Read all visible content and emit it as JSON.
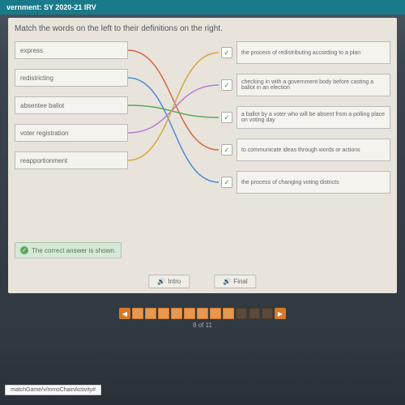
{
  "header": {
    "title": "vernment: SY 2020-21 IRV"
  },
  "instruction": "Match the words on the left to their definitions on the right.",
  "terms": [
    {
      "label": "express"
    },
    {
      "label": "redistricting"
    },
    {
      "label": "absentee ballot"
    },
    {
      "label": "voter registration"
    },
    {
      "label": "reapportionment"
    }
  ],
  "defs": [
    {
      "text": "the process of redistributing according to a plan"
    },
    {
      "text": "checking in with a government body before casting a ballot in an election"
    },
    {
      "text": "a ballot by a voter who will be absent from a polling place on voting day"
    },
    {
      "text": "to communicate ideas through words or actions"
    },
    {
      "text": "the process of changing voting districts"
    }
  ],
  "lines": [
    {
      "from": 0,
      "to": 3,
      "color": "#d9643f"
    },
    {
      "from": 1,
      "to": 4,
      "color": "#4a8ad4"
    },
    {
      "from": 2,
      "to": 2,
      "color": "#5aaa5a"
    },
    {
      "from": 3,
      "to": 1,
      "color": "#b77ad4"
    },
    {
      "from": 4,
      "to": 0,
      "color": "#d9a43f"
    }
  ],
  "correct_msg": "The correct answer is shown.",
  "buttons": {
    "intro": "Intro",
    "final": "Final"
  },
  "progress": {
    "count": 11,
    "current": 8,
    "label": "8 of 11"
  },
  "taskbar": "matchGame/v/mmsChainActivity#",
  "colors": {
    "header": "#1a7a8a",
    "panel": "#e8e4dc"
  }
}
